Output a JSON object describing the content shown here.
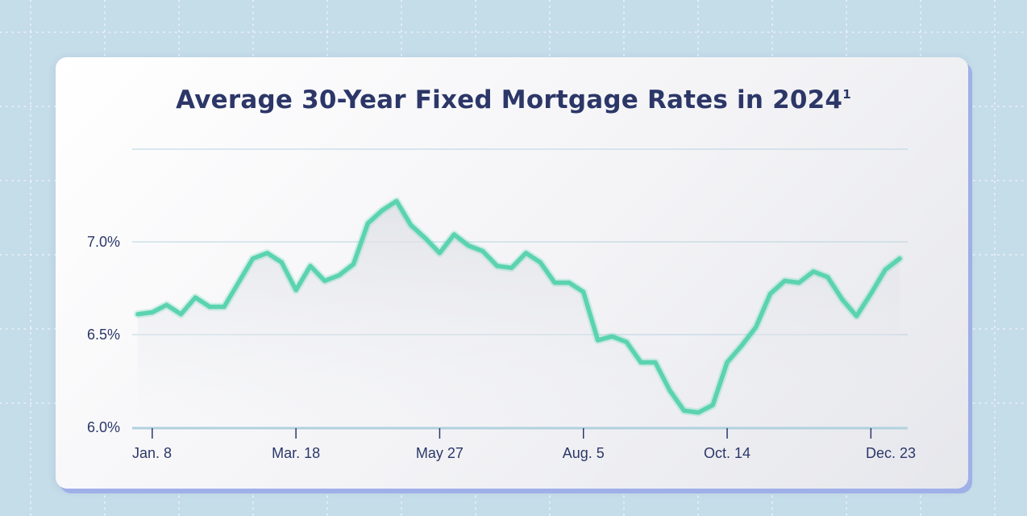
{
  "chart_data": {
    "type": "line",
    "title": "Average 30-Year Fixed Mortgage Rates in 2024",
    "title_superscript": "1",
    "xlabel": "",
    "ylabel": "",
    "ylim": [
      6.0,
      7.5
    ],
    "yticks": [
      {
        "value": 7.0,
        "label": "7.0%"
      },
      {
        "value": 6.5,
        "label": "6.5%"
      },
      {
        "value": 6.0,
        "label": "6.0%"
      }
    ],
    "gridlines": [
      6.5,
      7.0,
      7.5
    ],
    "xticks": [
      {
        "label": "Jan. 8",
        "index": 1
      },
      {
        "label": "Mar. 18",
        "index": 11
      },
      {
        "label": "May 27",
        "index": 21
      },
      {
        "label": "Aug. 5",
        "index": 31
      },
      {
        "label": "Oct. 14",
        "index": 41
      },
      {
        "label": "Dec. 23",
        "index": 51
      }
    ],
    "series": [
      {
        "values": [
          6.61,
          6.62,
          6.66,
          6.61,
          6.7,
          6.65,
          6.65,
          6.78,
          6.91,
          6.94,
          6.89,
          6.74,
          6.87,
          6.79,
          6.82,
          6.88,
          7.1,
          7.17,
          7.22,
          7.09,
          7.02,
          6.94,
          7.04,
          6.98,
          6.95,
          6.87,
          6.86,
          6.94,
          6.89,
          6.78,
          6.78,
          6.73,
          6.47,
          6.49,
          6.46,
          6.35,
          6.35,
          6.2,
          6.09,
          6.08,
          6.12,
          6.35,
          6.44,
          6.54,
          6.72,
          6.79,
          6.78,
          6.84,
          6.81,
          6.69,
          6.6,
          6.72,
          6.85,
          6.91
        ]
      }
    ],
    "grid": true,
    "legend": "none",
    "colors": {
      "line": "#5bd3b0",
      "text": "#2c3768",
      "grid": "#b7d2df",
      "axis": "#b2d1df",
      "background": "#c5dce9",
      "card": "#ffffff",
      "card_shadow": "#9fb0e8"
    }
  }
}
